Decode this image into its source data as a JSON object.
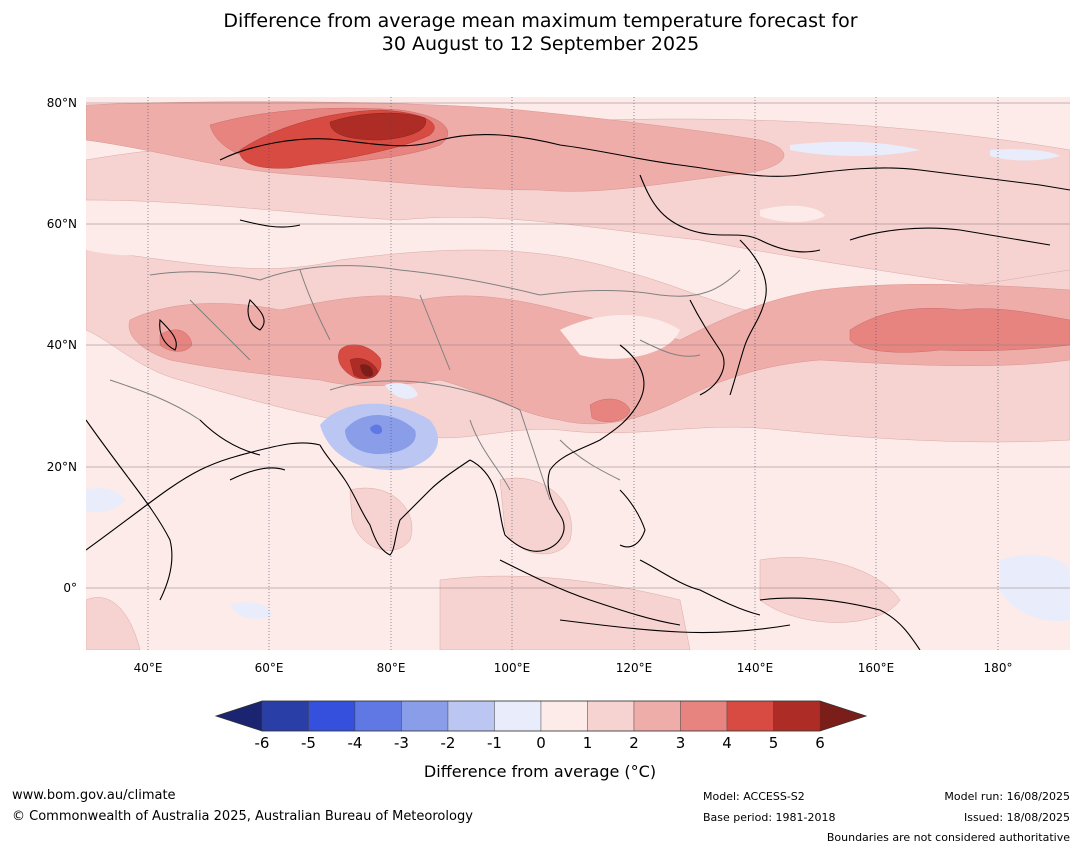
{
  "header": {
    "title_line1": "Difference from average mean maximum temperature forecast for",
    "title_line2": "30 August to 12 September 2025"
  },
  "map": {
    "lat_labels": [
      "80°N",
      "60°N",
      "40°N",
      "20°N",
      "0°"
    ],
    "lon_labels": [
      "40°E",
      "60°E",
      "80°E",
      "100°E",
      "120°E",
      "140°E",
      "160°E",
      "180°"
    ]
  },
  "colorbar": {
    "label": "Difference from average (°C)",
    "ticks": [
      "-6",
      "-5",
      "-4",
      "-3",
      "-2",
      "-1",
      "0",
      "1",
      "2",
      "3",
      "4",
      "5",
      "6"
    ],
    "colors": [
      "#2a3ea8",
      "#3450dc",
      "#5f78e3",
      "#8a9de9",
      "#bcc6f3",
      "#e9ecfb",
      "#fcebe9",
      "#f6d3d0",
      "#efada9",
      "#e78480",
      "#d84b42",
      "#ad2c26"
    ],
    "under_color": "#1a2470",
    "over_color": "#7b1e1a"
  },
  "footer": {
    "url": "www.bom.gov.au/climate",
    "copyright": "© Commonwealth of Australia 2025, Australian Bureau of Meteorology",
    "model": "Model: ACCESS-S2",
    "base_period": "Base period: 1981-2018",
    "model_run": "Model run: 16/08/2025",
    "issued": "Issued: 18/08/2025",
    "disclaimer": "Boundaries are not considered authoritative"
  }
}
